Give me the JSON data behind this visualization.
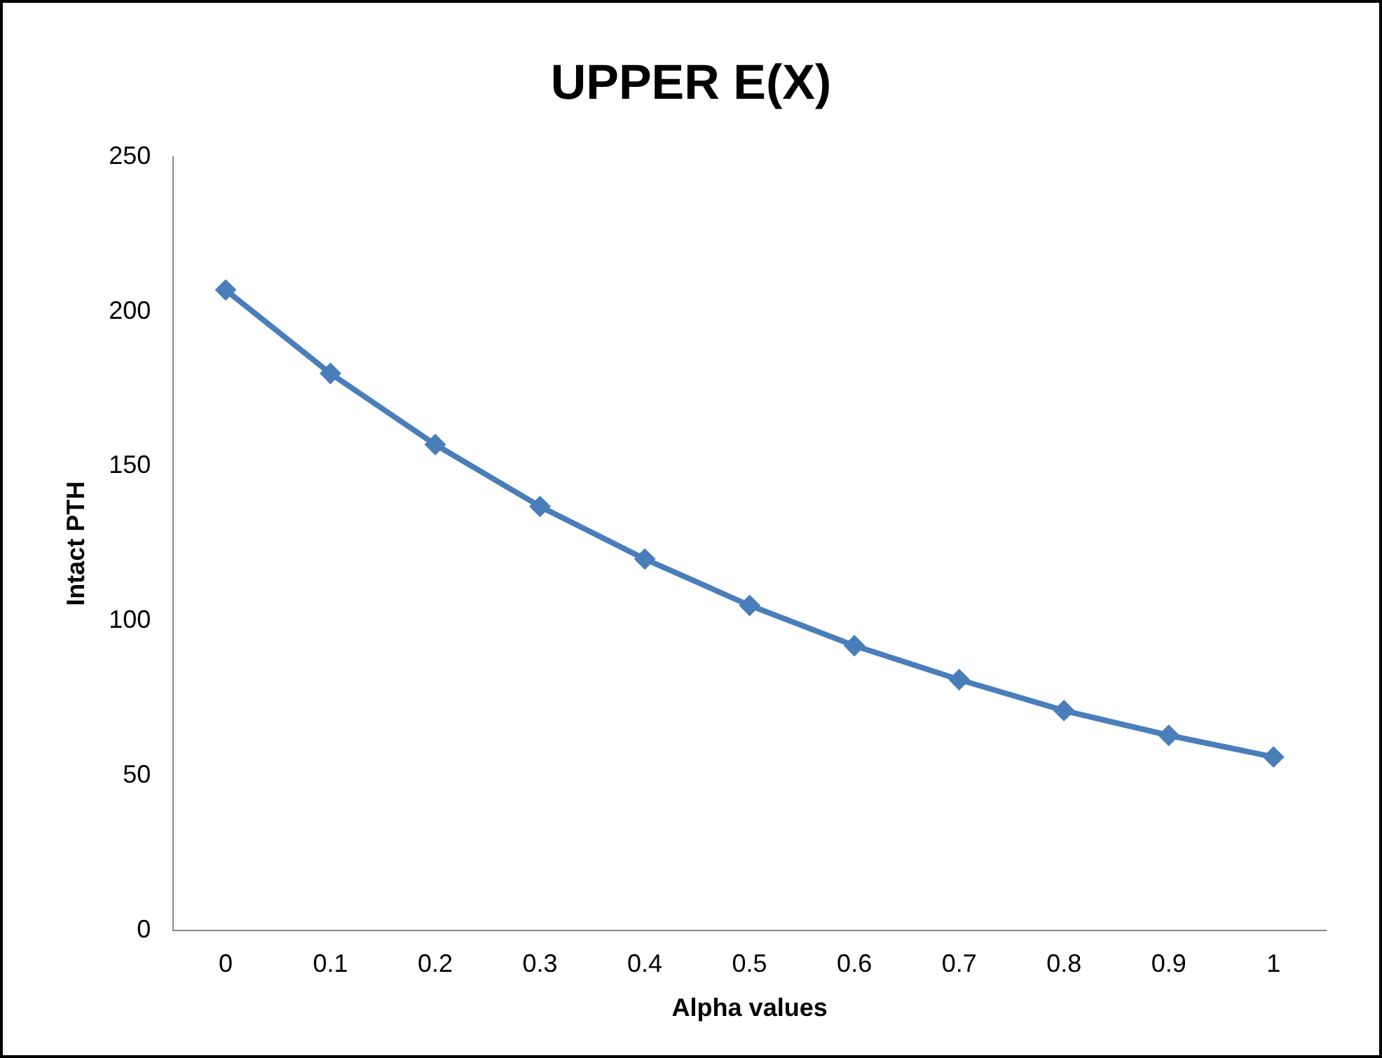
{
  "chart_data": {
    "type": "line",
    "title": "UPPER E(X)",
    "xlabel": "Alpha values",
    "ylabel": "Intact PTH",
    "categories": [
      "0",
      "0.1",
      "0.2",
      "0.3",
      "0.4",
      "0.5",
      "0.6",
      "0.7",
      "0.8",
      "0.9",
      "1"
    ],
    "series": [
      {
        "color": "#4a7ebb",
        "values": [
          207,
          180,
          157,
          137,
          120,
          105,
          92,
          81,
          71,
          63,
          56
        ]
      }
    ],
    "ylim": [
      0,
      250
    ],
    "yticks": [
      0,
      50,
      100,
      150,
      200,
      250
    ],
    "grid": false,
    "legend": false,
    "marker": "diamond",
    "line_style": "solid"
  }
}
